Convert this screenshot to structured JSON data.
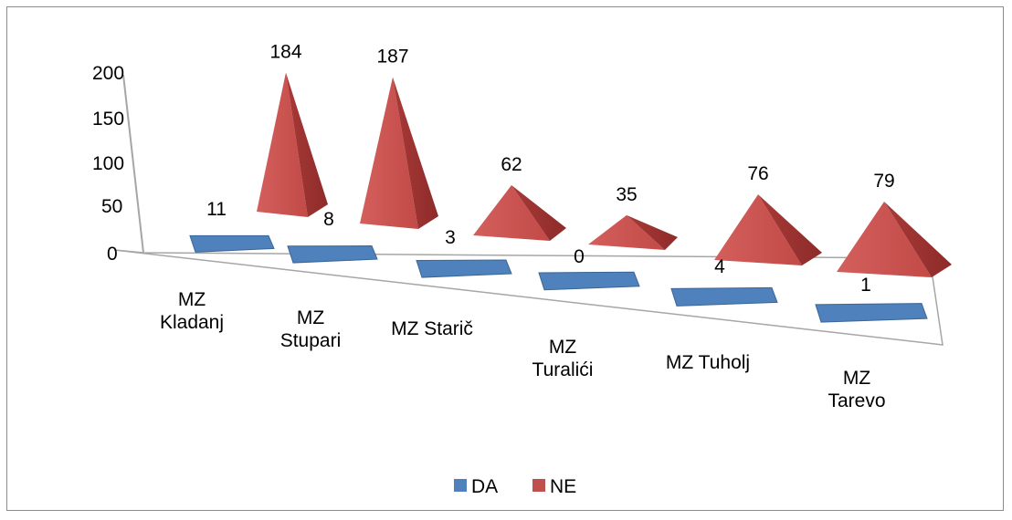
{
  "chart_data": {
    "type": "bar",
    "style": "3d-pyramid",
    "categories": [
      [
        "MZ",
        "Kladanj"
      ],
      [
        "MZ",
        "Stupari"
      ],
      [
        "MZ Starič"
      ],
      [
        "MZ",
        "Turalići"
      ],
      [
        "MZ Tuholj"
      ],
      [
        "MZ",
        "Tarevo"
      ]
    ],
    "series": [
      {
        "name": "DA",
        "values": [
          11,
          8,
          3,
          0,
          4,
          1
        ],
        "data_labels": [
          "11",
          "8",
          "3",
          "0",
          "4",
          "1"
        ],
        "color": "#4f81bd"
      },
      {
        "name": "NE",
        "values": [
          184,
          187,
          62,
          35,
          76,
          79
        ],
        "data_labels": [
          "184",
          "187",
          "62",
          "35",
          "76",
          "79"
        ],
        "color": "#c0504d"
      }
    ],
    "yaxis": {
      "ticks": [
        "0",
        "50",
        "100",
        "150",
        "200"
      ],
      "ylim": [
        0,
        200
      ]
    },
    "legend": {
      "position": "bottom",
      "items": [
        "DA",
        "NE"
      ]
    },
    "grid": false
  }
}
